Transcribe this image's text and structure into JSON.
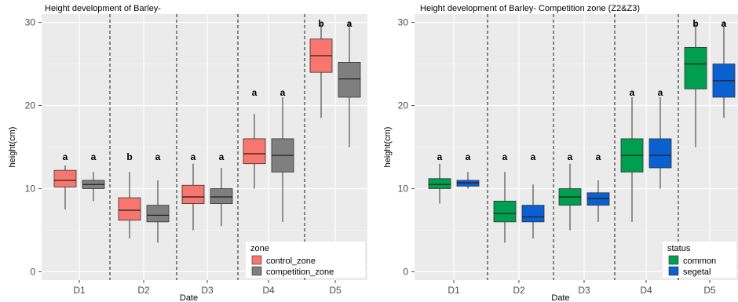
{
  "chart_data": [
    {
      "type": "box",
      "title": "Height development of Barley-",
      "xlabel": "Date",
      "ylabel": "height(cm)",
      "ylim": [
        -1,
        31
      ],
      "yticks": [
        0,
        10,
        20,
        30
      ],
      "categories": [
        "D1",
        "D2",
        "D3",
        "D4",
        "D5"
      ],
      "grid": true,
      "legend": {
        "title": "zone",
        "position": "bottom-right"
      },
      "series": [
        {
          "name": "control_zone",
          "color": "#f8766d",
          "boxes": [
            {
              "min": 7.5,
              "q1": 10.2,
              "median": 11.0,
              "q3": 12.2,
              "max": 12.8
            },
            {
              "min": 4.0,
              "q1": 6.2,
              "median": 7.4,
              "q3": 8.9,
              "max": 12.0
            },
            {
              "min": 5.0,
              "q1": 8.2,
              "median": 9.0,
              "q3": 10.4,
              "max": 13.0
            },
            {
              "min": 10.0,
              "q1": 13.0,
              "median": 14.2,
              "q3": 16.0,
              "max": 19.0
            },
            {
              "min": 18.5,
              "q1": 24.0,
              "median": 26.0,
              "q3": 28.0,
              "max": 30.0
            }
          ],
          "letters": [
            "a",
            "b",
            "a",
            "a",
            "b"
          ]
        },
        {
          "name": "competition_zone",
          "color": "#7f7f7f",
          "boxes": [
            {
              "min": 8.5,
              "q1": 10.0,
              "median": 10.5,
              "q3": 11.0,
              "max": 12.0
            },
            {
              "min": 3.5,
              "q1": 6.0,
              "median": 6.8,
              "q3": 8.0,
              "max": 11.0
            },
            {
              "min": 5.5,
              "q1": 8.2,
              "median": 9.0,
              "q3": 10.0,
              "max": 12.5
            },
            {
              "min": 6.0,
              "q1": 12.0,
              "median": 14.0,
              "q3": 16.0,
              "max": 21.0
            },
            {
              "min": 15.0,
              "q1": 21.0,
              "median": 23.2,
              "q3": 25.2,
              "max": 30.0
            }
          ],
          "letters": [
            "a",
            "a",
            "a",
            "a",
            "a"
          ]
        }
      ]
    },
    {
      "type": "box",
      "title": "Height development of Barley- Competition zone (Z2&Z3)",
      "xlabel": "Date",
      "ylabel": "height(cm)",
      "ylim": [
        -1,
        31
      ],
      "yticks": [
        0,
        10,
        20,
        30
      ],
      "categories": [
        "D1",
        "D2",
        "D3",
        "D4",
        "D5"
      ],
      "grid": true,
      "legend": {
        "title": "status",
        "position": "bottom-right"
      },
      "series": [
        {
          "name": "common",
          "color": "#009e4f",
          "boxes": [
            {
              "min": 8.2,
              "q1": 10.0,
              "median": 10.5,
              "q3": 11.2,
              "max": 13.0
            },
            {
              "min": 3.5,
              "q1": 6.0,
              "median": 7.0,
              "q3": 8.5,
              "max": 12.0
            },
            {
              "min": 5.0,
              "q1": 8.0,
              "median": 9.0,
              "q3": 10.0,
              "max": 13.0
            },
            {
              "min": 6.0,
              "q1": 12.0,
              "median": 14.0,
              "q3": 16.0,
              "max": 21.0
            },
            {
              "min": 15.0,
              "q1": 22.0,
              "median": 25.0,
              "q3": 27.0,
              "max": 30.0
            }
          ],
          "letters": [
            "a",
            "a",
            "a",
            "a",
            "b"
          ]
        },
        {
          "name": "segetal",
          "color": "#0a5fd1",
          "boxes": [
            {
              "min": 10.0,
              "q1": 10.3,
              "median": 10.7,
              "q3": 11.0,
              "max": 12.0
            },
            {
              "min": 4.0,
              "q1": 6.0,
              "median": 6.6,
              "q3": 8.0,
              "max": 10.5
            },
            {
              "min": 6.0,
              "q1": 8.0,
              "median": 8.8,
              "q3": 9.5,
              "max": 11.0
            },
            {
              "min": 10.0,
              "q1": 12.5,
              "median": 14.0,
              "q3": 16.0,
              "max": 21.0
            },
            {
              "min": 18.5,
              "q1": 21.0,
              "median": 23.0,
              "q3": 25.0,
              "max": 30.0
            }
          ],
          "letters": [
            "a",
            "a",
            "a",
            "a",
            "a"
          ]
        }
      ]
    }
  ]
}
